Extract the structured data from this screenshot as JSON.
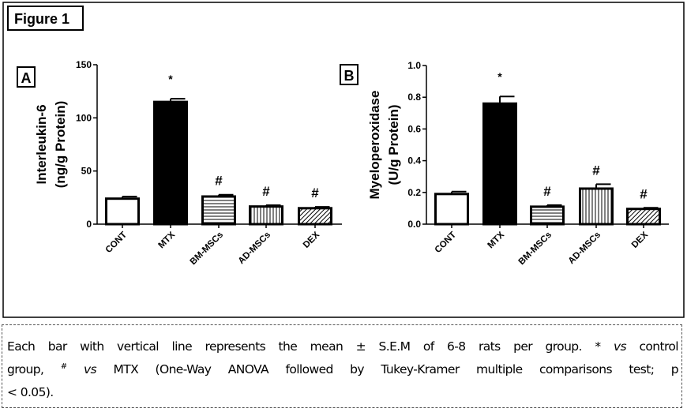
{
  "figure_label": "Figure 1",
  "chart_data": [
    {
      "type": "bar",
      "panel": "A",
      "ylabel_line1": "Interleukin-6",
      "ylabel_line2": "(ng/g Protein)",
      "ylim": [
        0,
        150
      ],
      "yticks": [
        "0",
        "50",
        "100",
        "150"
      ],
      "ytick_values": [
        0,
        50,
        100,
        150
      ],
      "categories": [
        "CONT",
        "MTX",
        "BM-MSCs",
        "AD-MSCs",
        "DEX"
      ],
      "values": [
        24,
        115,
        26,
        16.6,
        15
      ],
      "sem": [
        2,
        3,
        1.7,
        1.2,
        1.2
      ],
      "annotations": [
        "",
        "*",
        "#",
        "#",
        "#"
      ],
      "fills": [
        "white",
        "black",
        "horizontal-lines",
        "vertical-lines",
        "diagonal-lines"
      ]
    },
    {
      "type": "bar",
      "panel": "B",
      "ylabel_line1": "Myeloperoxidase",
      "ylabel_line2": "(U/g Protein)",
      "ylim": [
        0,
        1.0
      ],
      "yticks": [
        "0.0",
        "0.2",
        "0.4",
        "0.6",
        "0.8",
        "1.0"
      ],
      "ytick_values": [
        0,
        0.2,
        0.4,
        0.6,
        0.8,
        1.0
      ],
      "categories": [
        "CONT",
        "MTX",
        "BM-MSCs",
        "AD-MSCs",
        "DEX"
      ],
      "values": [
        0.19,
        0.76,
        0.11,
        0.224,
        0.096
      ],
      "sem": [
        0.015,
        0.045,
        0.01,
        0.028,
        0.007
      ],
      "annotations": [
        "",
        "*",
        "#",
        "#",
        "#"
      ],
      "fills": [
        "white",
        "black",
        "horizontal-lines",
        "vertical-lines",
        "diagonal-lines"
      ]
    }
  ],
  "caption": {
    "line1_a": "Each bar with vertical line represents the mean ± S.E.M of 6-8 rats per group. * ",
    "line1_vs": "vs",
    "line1_b": " control",
    "line2_a": "group, ",
    "line2_hash": "#",
    "line2_vs": "vs",
    "line2_b": " MTX (One-Way ANOVA followed by Tukey-Kramer multiple comparisons test; p",
    "line3": "< 0.05)."
  }
}
